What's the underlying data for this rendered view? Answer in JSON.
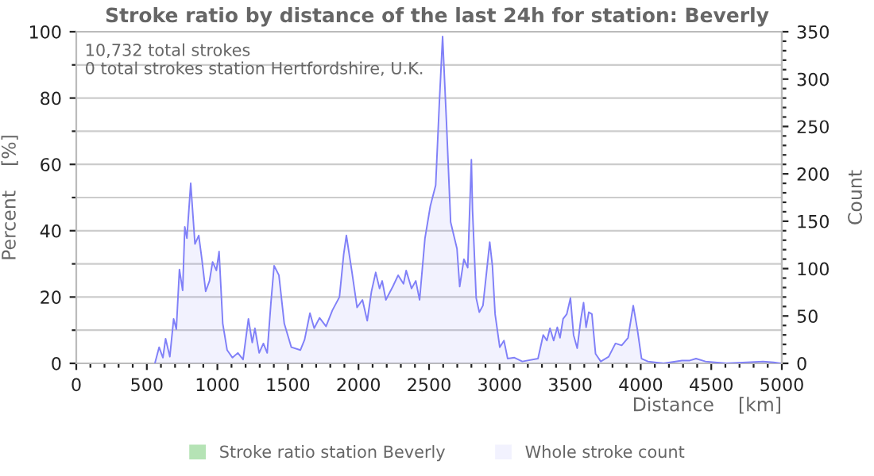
{
  "chart_data": {
    "type": "area",
    "title": "Stroke ratio by distance of the last 24h for station: Beverly",
    "xlabel": "Distance    [km]",
    "ylabel": "Percent    [%]",
    "y2label": "Count",
    "annotations": [
      "10,732 total strokes",
      "0 total strokes station Hertfordshire, U.K."
    ],
    "xlim": [
      0,
      5000
    ],
    "ylim": [
      0,
      100
    ],
    "y2lim": [
      0,
      350
    ],
    "xticks": [
      0,
      {
        "value": 100,
        "label": null
      },
      {
        "value": 200,
        "label": null
      },
      {
        "value": 300,
        "label": null
      },
      {
        "value": 400,
        "label": null
      },
      500,
      {
        "value": 600,
        "label": null
      },
      {
        "value": 700,
        "label": null
      },
      {
        "value": 800,
        "label": null
      },
      {
        "value": 900,
        "label": null
      },
      1000,
      {
        "value": 1100,
        "label": null
      },
      {
        "value": 1200,
        "label": null
      },
      {
        "value": 1300,
        "label": null
      },
      {
        "value": 1400,
        "label": null
      },
      1500,
      {
        "value": 1600,
        "label": null
      },
      {
        "value": 1700,
        "label": null
      },
      {
        "value": 1800,
        "label": null
      },
      {
        "value": 1900,
        "label": null
      },
      2000,
      {
        "value": 2100,
        "label": null
      },
      {
        "value": 2200,
        "label": null
      },
      {
        "value": 2300,
        "label": null
      },
      {
        "value": 2400,
        "label": null
      },
      2500,
      {
        "value": 2600,
        "label": null
      },
      {
        "value": 2700,
        "label": null
      },
      {
        "value": 2800,
        "label": null
      },
      {
        "value": 2900,
        "label": null
      },
      3000,
      {
        "value": 3100,
        "label": null
      },
      {
        "value": 3200,
        "label": null
      },
      {
        "value": 3300,
        "label": null
      },
      {
        "value": 3400,
        "label": null
      },
      3500,
      {
        "value": 3600,
        "label": null
      },
      {
        "value": 3700,
        "label": null
      },
      {
        "value": 3800,
        "label": null
      },
      {
        "value": 3900,
        "label": null
      },
      4000,
      {
        "value": 4100,
        "label": null
      },
      {
        "value": 4200,
        "label": null
      },
      {
        "value": 4300,
        "label": null
      },
      {
        "value": 4400,
        "label": null
      },
      4500,
      {
        "value": 4600,
        "label": null
      },
      {
        "value": 4700,
        "label": null
      },
      {
        "value": 4800,
        "label": null
      },
      {
        "value": 4900,
        "label": null
      },
      5000
    ],
    "yticks": [
      0,
      {
        "value": 10,
        "label": null
      },
      20,
      {
        "value": 30,
        "label": null
      },
      40,
      {
        "value": 50,
        "label": null
      },
      60,
      {
        "value": 70,
        "label": null
      },
      80,
      {
        "value": 90,
        "label": null
      },
      100
    ],
    "y2ticks": [
      0,
      {
        "value": 10,
        "label": null
      },
      {
        "value": 20,
        "label": null
      },
      {
        "value": 30,
        "label": null
      },
      {
        "value": 40,
        "label": null
      },
      50,
      {
        "value": 60,
        "label": null
      },
      {
        "value": 70,
        "label": null
      },
      {
        "value": 80,
        "label": null
      },
      {
        "value": 90,
        "label": null
      },
      100,
      {
        "value": 110,
        "label": null
      },
      {
        "value": 120,
        "label": null
      },
      {
        "value": 130,
        "label": null
      },
      {
        "value": 140,
        "label": null
      },
      150,
      {
        "value": 160,
        "label": null
      },
      {
        "value": 170,
        "label": null
      },
      {
        "value": 180,
        "label": null
      },
      {
        "value": 190,
        "label": null
      },
      200,
      {
        "value": 210,
        "label": null
      },
      {
        "value": 220,
        "label": null
      },
      {
        "value": 230,
        "label": null
      },
      {
        "value": 240,
        "label": null
      },
      250,
      {
        "value": 260,
        "label": null
      },
      {
        "value": 270,
        "label": null
      },
      {
        "value": 280,
        "label": null
      },
      {
        "value": 290,
        "label": null
      },
      300,
      {
        "value": 310,
        "label": null
      },
      {
        "value": 320,
        "label": null
      },
      {
        "value": 330,
        "label": null
      },
      {
        "value": 340,
        "label": null
      },
      350
    ],
    "grid": "y",
    "legend": "bottom",
    "series": [
      {
        "name": "Stroke ratio station Beverly",
        "type": "bar",
        "color": "#b5e3b5"
      },
      {
        "name": "Whole stroke count",
        "axis": "y2",
        "color": "#8080f8",
        "x": [
          557,
          587,
          614,
          633,
          663,
          690,
          709,
          731,
          754,
          769,
          784,
          811,
          841,
          868,
          890,
          917,
          944,
          966,
          993,
          1012,
          1038,
          1069,
          1107,
          1145,
          1182,
          1220,
          1247,
          1266,
          1296,
          1326,
          1353,
          1380,
          1402,
          1436,
          1474,
          1524,
          1588,
          1618,
          1656,
          1686,
          1724,
          1770,
          1815,
          1865,
          1895,
          1914,
          1952,
          1990,
          2028,
          2062,
          2092,
          2122,
          2149,
          2168,
          2194,
          2243,
          2281,
          2319,
          2338,
          2376,
          2406,
          2433,
          2471,
          2509,
          2547,
          2573,
          2596,
          2623,
          2653,
          2698,
          2717,
          2747,
          2774,
          2800,
          2808,
          2834,
          2856,
          2882,
          2908,
          2930,
          2949,
          2968,
          3001,
          3031,
          3057,
          3105,
          3161,
          3272,
          3309,
          3335,
          3357,
          3383,
          3409,
          3428,
          3450,
          3476,
          3502,
          3524,
          3550,
          3576,
          3595,
          3613,
          3632,
          3654,
          3680,
          3717,
          3773,
          3821,
          3865,
          3910,
          3947,
          3977,
          4006,
          4051,
          4162,
          4292,
          4348,
          4392,
          4459,
          4607,
          4867,
          4941,
          4995
        ],
        "values": [
          0,
          17,
          6,
          26,
          7,
          47,
          36,
          99,
          77,
          144,
          132,
          190,
          126,
          135,
          110,
          76,
          87,
          107,
          98,
          118,
          42,
          14,
          6,
          11,
          4,
          47,
          22,
          37,
          11,
          21,
          11,
          65,
          103,
          93,
          42,
          17,
          14,
          25,
          53,
          37,
          48,
          39,
          56,
          70,
          115,
          135,
          98,
          59,
          67,
          45,
          76,
          96,
          79,
          87,
          67,
          81,
          93,
          84,
          98,
          79,
          87,
          67,
          132,
          166,
          188,
          275,
          345,
          256,
          149,
          121,
          81,
          110,
          101,
          215,
          162,
          69,
          54,
          61,
          97,
          128,
          103,
          52,
          17,
          24,
          5,
          6,
          2,
          5,
          30,
          24,
          37,
          24,
          38,
          27,
          47,
          52,
          69,
          30,
          16,
          47,
          64,
          38,
          54,
          52,
          10,
          2,
          7,
          21,
          19,
          27,
          61,
          35,
          5,
          2,
          0,
          3,
          3,
          5,
          2,
          0,
          2,
          1,
          0
        ]
      }
    ]
  }
}
